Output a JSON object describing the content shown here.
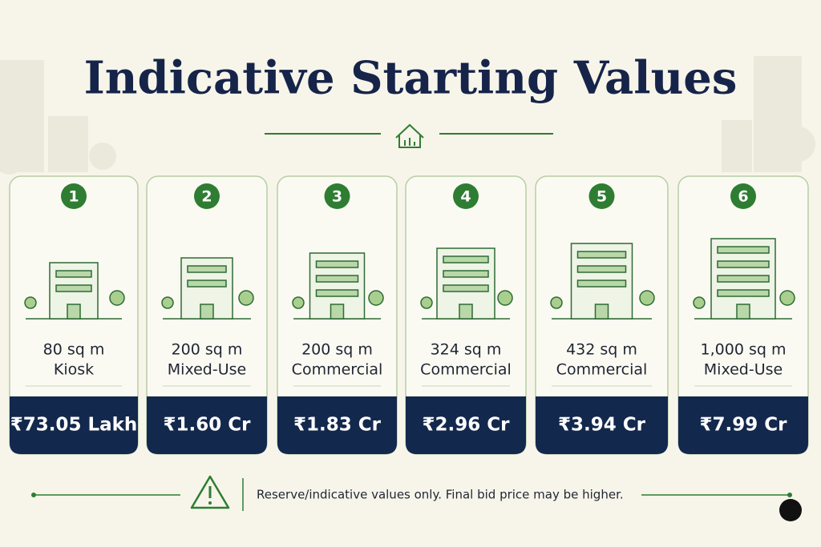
{
  "header": {
    "title": "Indicative Starting Values"
  },
  "cards": [
    {
      "number": "1",
      "area": "80 sq m",
      "use": "Kiosk",
      "price": "₹73.05 Lakh"
    },
    {
      "number": "2",
      "area": "200 sq m",
      "use": "Mixed-Use",
      "price": "₹1.60 Cr"
    },
    {
      "number": "3",
      "area": "200 sq m",
      "use": "Commercial",
      "price": "₹1.83 Cr"
    },
    {
      "number": "4",
      "area": "324 sq m",
      "use": "Commercial",
      "price": "₹2.96 Cr"
    },
    {
      "number": "5",
      "area": "432 sq m",
      "use": "Commercial",
      "price": "₹3.94 Cr"
    },
    {
      "number": "6",
      "area": "1,000 sq m",
      "use": "Mixed-Use",
      "price": "₹7.99 Cr"
    }
  ],
  "footer": {
    "note": "Reserve/indicative values only. Final bid price may be higher."
  }
}
